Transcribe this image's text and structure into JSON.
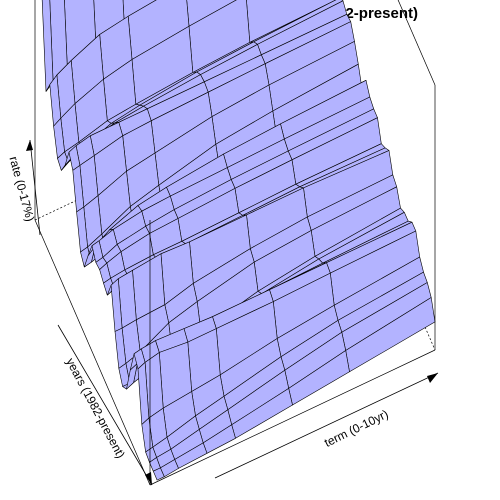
{
  "chart_data": {
    "type": "surface",
    "title": "Historical Treasury Yield Curves (1982-present)",
    "axes": {
      "x": {
        "label": "term (0-10yr)",
        "range": [
          0,
          10
        ]
      },
      "y": {
        "label": "years (1982-present)",
        "range": [
          1982,
          2012
        ]
      },
      "z": {
        "label": "rate (0-17%)",
        "range": [
          0,
          17
        ]
      }
    },
    "x": [
      0.25,
      0.5,
      1,
      2,
      3,
      5,
      7,
      10
    ],
    "years": [
      1982,
      1983,
      1984,
      1985,
      1986,
      1987,
      1988,
      1989,
      1990,
      1991,
      1992,
      1993,
      1994,
      1995,
      1996,
      1997,
      1998,
      1999,
      2000,
      2001,
      2002,
      2003,
      2004,
      2005,
      2006,
      2007,
      2008,
      2009,
      2010,
      2011,
      2012
    ],
    "rates": [
      [
        14.0,
        14.4,
        14.6,
        14.7,
        14.6,
        14.6,
        14.5,
        14.4
      ],
      [
        8.6,
        9.0,
        9.5,
        10.2,
        10.5,
        10.8,
        11.0,
        11.1
      ],
      [
        9.6,
        10.0,
        10.5,
        11.3,
        11.6,
        12.0,
        12.2,
        12.4
      ],
      [
        7.5,
        7.8,
        8.3,
        9.0,
        9.4,
        9.8,
        10.1,
        10.5
      ],
      [
        6.0,
        6.2,
        6.4,
        6.9,
        7.1,
        7.4,
        7.6,
        7.7
      ],
      [
        5.8,
        6.1,
        6.6,
        7.3,
        7.6,
        8.0,
        8.2,
        8.4
      ],
      [
        6.7,
        7.0,
        7.5,
        7.9,
        8.1,
        8.4,
        8.6,
        8.8
      ],
      [
        8.1,
        8.3,
        8.5,
        8.5,
        8.5,
        8.5,
        8.5,
        8.5
      ],
      [
        7.5,
        7.6,
        7.8,
        8.2,
        8.3,
        8.4,
        8.5,
        8.6
      ],
      [
        5.4,
        5.5,
        5.8,
        6.5,
        6.8,
        7.4,
        7.7,
        7.9
      ],
      [
        3.4,
        3.5,
        3.9,
        4.8,
        5.3,
        6.2,
        6.6,
        7.0
      ],
      [
        3.0,
        3.1,
        3.4,
        4.0,
        4.4,
        5.1,
        5.5,
        5.9
      ],
      [
        4.3,
        4.7,
        5.3,
        6.0,
        6.3,
        6.7,
        6.9,
        7.1
      ],
      [
        5.5,
        5.6,
        5.9,
        6.2,
        6.3,
        6.4,
        6.5,
        6.6
      ],
      [
        5.0,
        5.1,
        5.5,
        5.8,
        6.0,
        6.2,
        6.3,
        6.4
      ],
      [
        5.1,
        5.3,
        5.6,
        5.9,
        6.0,
        6.2,
        6.3,
        6.4
      ],
      [
        4.8,
        4.9,
        5.0,
        5.1,
        5.1,
        5.2,
        5.3,
        5.3
      ],
      [
        4.6,
        4.8,
        5.1,
        5.4,
        5.5,
        5.6,
        5.7,
        5.6
      ],
      [
        5.8,
        6.0,
        6.1,
        6.3,
        6.2,
        6.2,
        6.2,
        6.0
      ],
      [
        3.4,
        3.4,
        3.5,
        3.6,
        4.1,
        4.6,
        4.9,
        5.0
      ],
      [
        1.6,
        1.7,
        2.0,
        3.0,
        3.5,
        4.3,
        4.6,
        4.8
      ],
      [
        1.0,
        1.0,
        1.2,
        1.6,
        2.1,
        3.0,
        3.5,
        4.0
      ],
      [
        1.4,
        1.6,
        1.9,
        2.4,
        2.8,
        3.4,
        3.9,
        4.3
      ],
      [
        3.2,
        3.4,
        3.6,
        3.9,
        4.0,
        4.1,
        4.2,
        4.3
      ],
      [
        4.8,
        4.9,
        5.0,
        4.9,
        4.8,
        4.8,
        4.8,
        4.8
      ],
      [
        4.4,
        4.6,
        4.8,
        4.6,
        4.6,
        4.6,
        4.7,
        4.8
      ],
      [
        1.4,
        1.6,
        1.8,
        2.0,
        2.2,
        2.8,
        3.2,
        3.7
      ],
      [
        0.2,
        0.3,
        0.5,
        1.0,
        1.4,
        2.2,
        2.8,
        3.3
      ],
      [
        0.1,
        0.2,
        0.3,
        0.7,
        1.1,
        1.9,
        2.6,
        3.2
      ],
      [
        0.1,
        0.1,
        0.2,
        0.4,
        0.7,
        1.3,
        2.0,
        2.8
      ],
      [
        0.1,
        0.1,
        0.2,
        0.3,
        0.4,
        0.8,
        1.2,
        1.8
      ]
    ],
    "colors": {
      "surface": "#b3b3ff",
      "grid": "#000000",
      "box": "#000000"
    }
  }
}
